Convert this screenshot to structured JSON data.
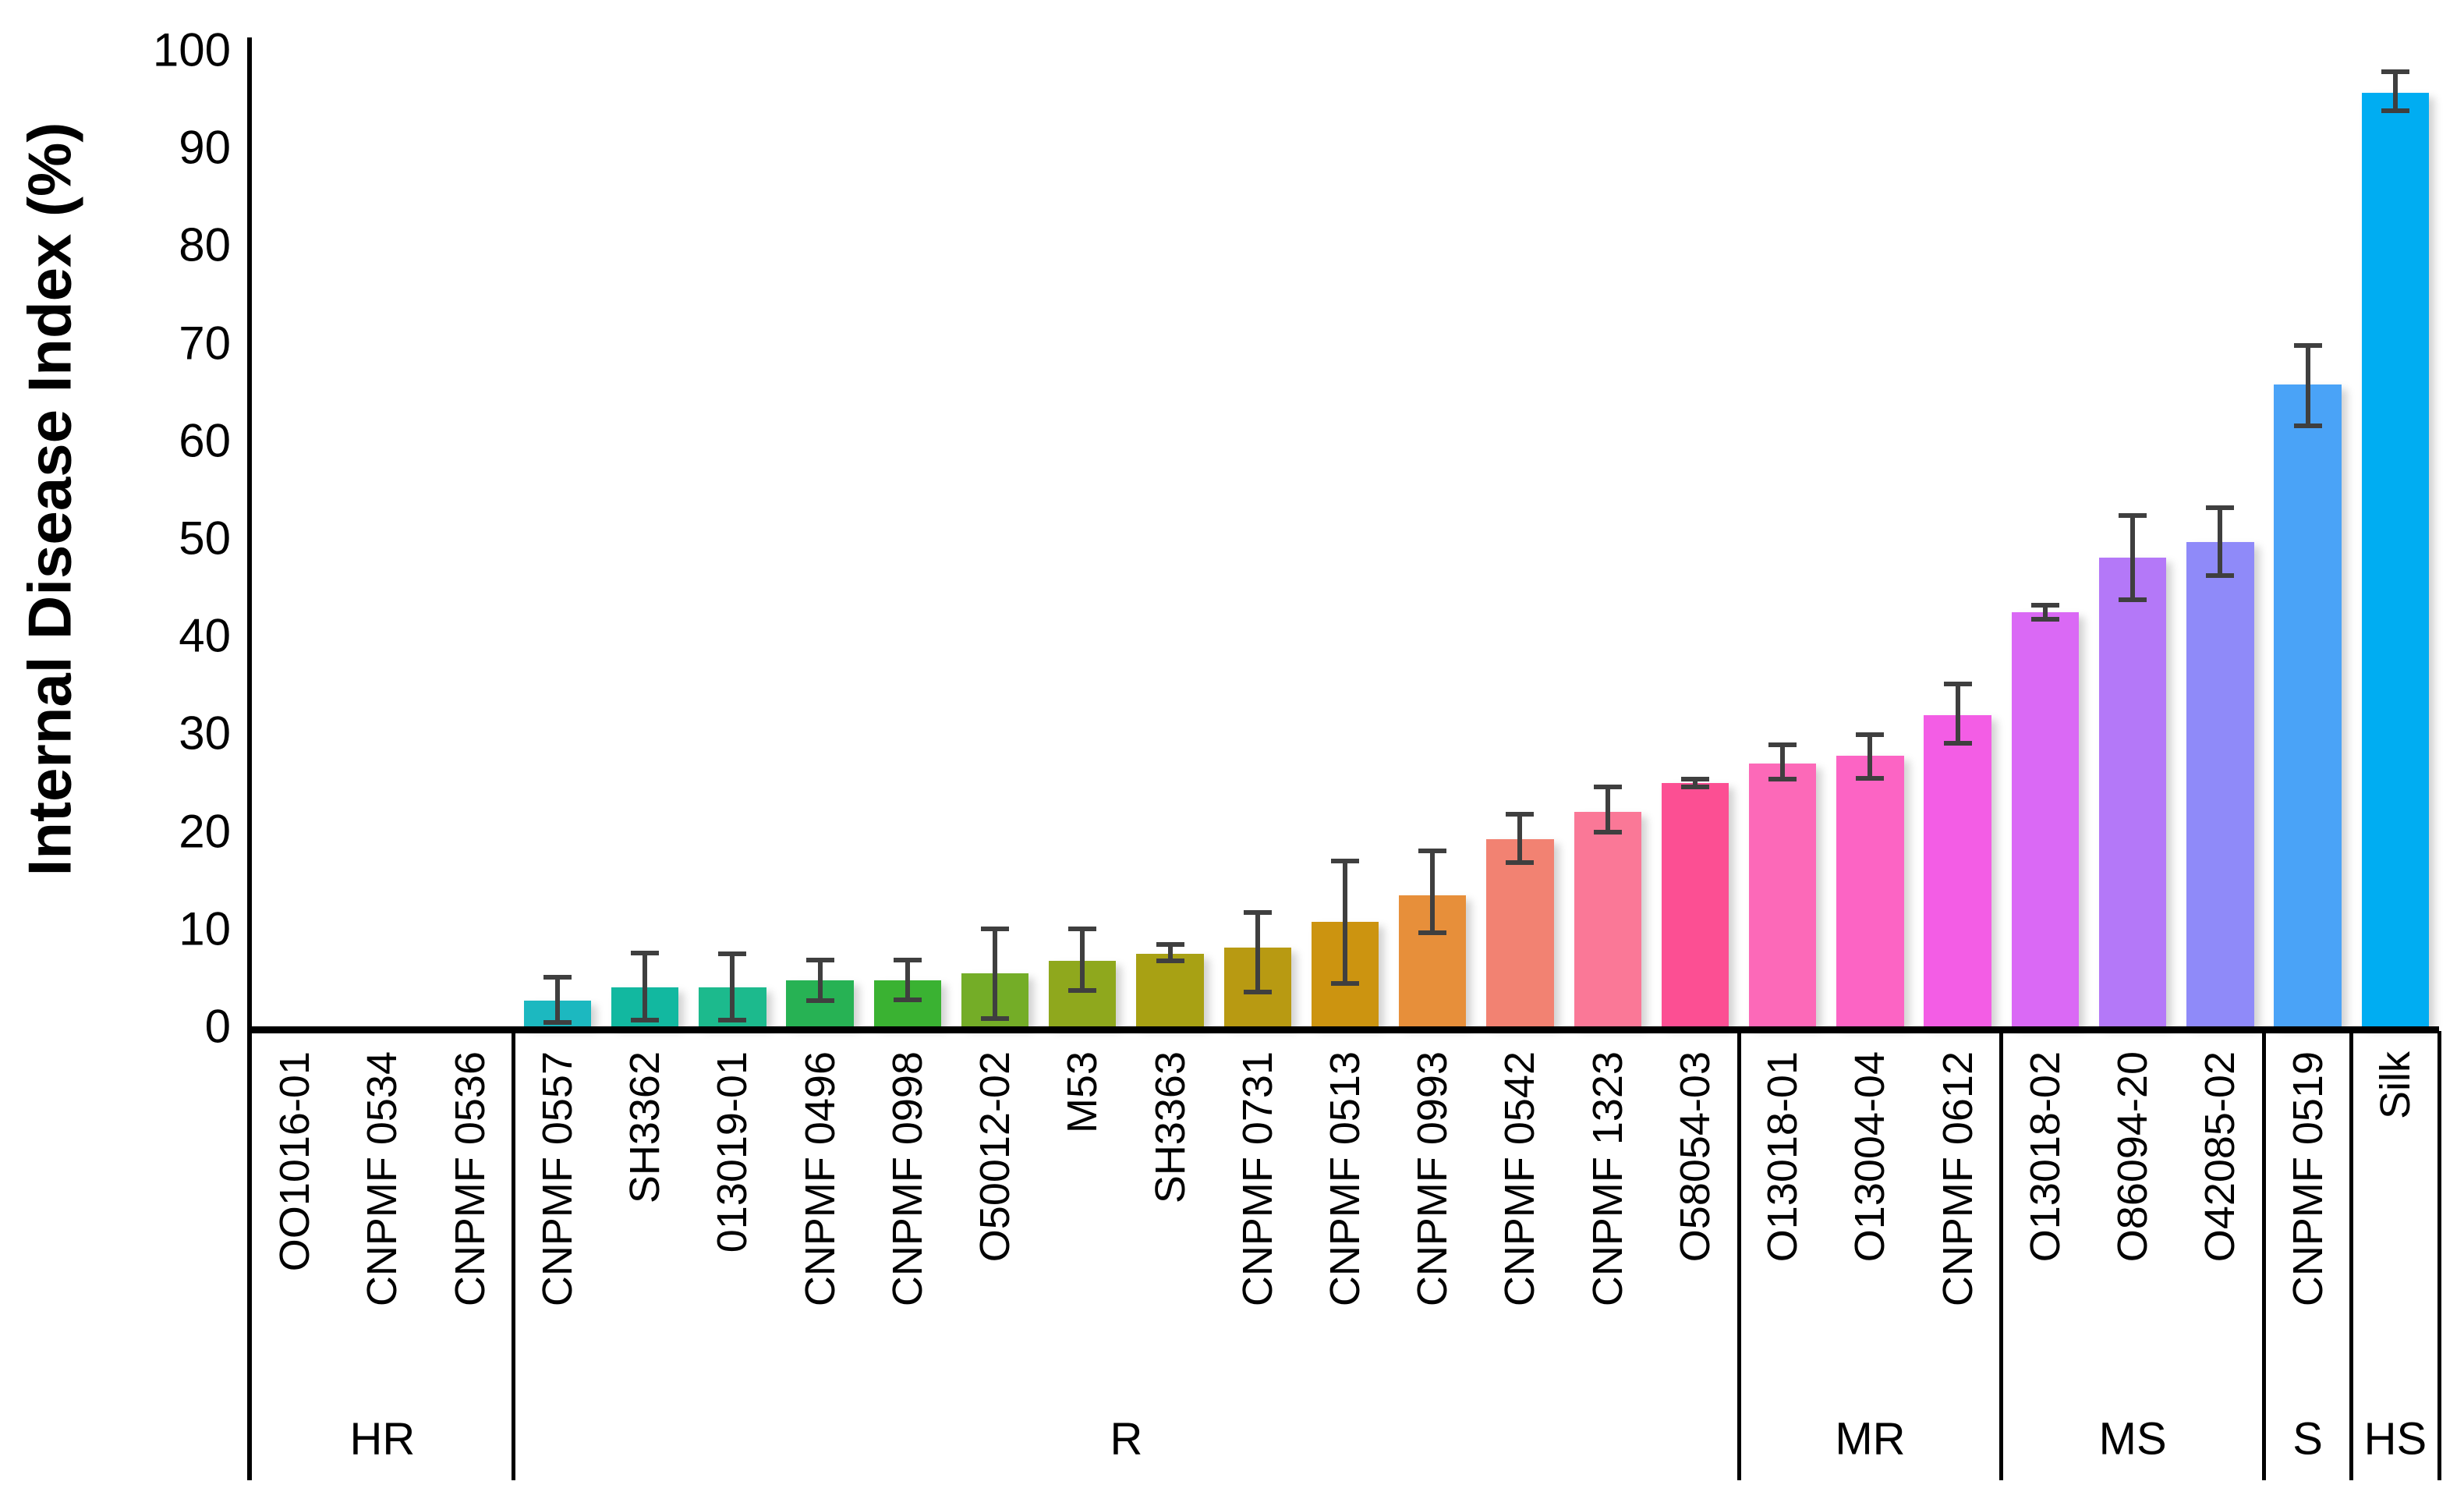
{
  "chart_data": {
    "type": "bar",
    "title": "",
    "xlabel": "",
    "ylabel": "Internal Disease Index (%)",
    "ylim": [
      0,
      100
    ],
    "ytick_step": 10,
    "grid": false,
    "legend": false,
    "error_bars": true,
    "error_color": "#3f3f3f",
    "axis_color": "#000000",
    "bars": [
      {
        "label": "OO1016-01",
        "group": "HR",
        "value": 0,
        "err_minus": 0,
        "err_plus": 0,
        "color": "#cccccc"
      },
      {
        "label": "CNPMF 0534",
        "group": "HR",
        "value": 0,
        "err_minus": 0,
        "err_plus": 0,
        "color": "#cccccc"
      },
      {
        "label": "CNPMF 0536",
        "group": "HR",
        "value": 0,
        "err_minus": 0,
        "err_plus": 0,
        "color": "#cccccc"
      },
      {
        "label": "CNPMF 0557",
        "group": "R",
        "value": 2.6,
        "err_minus": 2.2,
        "err_plus": 2.4,
        "color": "#1cb8c0"
      },
      {
        "label": "SH3362",
        "group": "R",
        "value": 4.0,
        "err_minus": 3.4,
        "err_plus": 3.5,
        "color": "#12b8a0"
      },
      {
        "label": "013019-01",
        "group": "R",
        "value": 4.0,
        "err_minus": 3.4,
        "err_plus": 3.4,
        "color": "#1cba8d"
      },
      {
        "label": "CNPMF 0496",
        "group": "R",
        "value": 4.7,
        "err_minus": 2.1,
        "err_plus": 2.1,
        "color": "#27b254"
      },
      {
        "label": "CNPMF 0998",
        "group": "R",
        "value": 4.7,
        "err_minus": 2.0,
        "err_plus": 2.1,
        "color": "#3ab232"
      },
      {
        "label": "O50012-02",
        "group": "R",
        "value": 5.4,
        "err_minus": 4.6,
        "err_plus": 4.6,
        "color": "#74ad27"
      },
      {
        "label": "M53",
        "group": "R",
        "value": 6.7,
        "err_minus": 3.0,
        "err_plus": 3.3,
        "color": "#8fa81d"
      },
      {
        "label": "SH3363",
        "group": "R",
        "value": 7.4,
        "err_minus": 0.7,
        "err_plus": 1.0,
        "color": "#a8a114"
      },
      {
        "label": "CNPMF 0731",
        "group": "R",
        "value": 8.1,
        "err_minus": 4.6,
        "err_plus": 3.6,
        "color": "#b89a12"
      },
      {
        "label": "CNPMF 0513",
        "group": "R",
        "value": 10.7,
        "err_minus": 6.3,
        "err_plus": 6.2,
        "color": "#cc9410"
      },
      {
        "label": "CNPMF 0993",
        "group": "R",
        "value": 13.4,
        "err_minus": 3.8,
        "err_plus": 4.6,
        "color": "#e78f3a"
      },
      {
        "label": "CNPMF 0542",
        "group": "R",
        "value": 19.2,
        "err_minus": 2.4,
        "err_plus": 2.5,
        "color": "#f28272"
      },
      {
        "label": "CNPMF 1323",
        "group": "R",
        "value": 22.0,
        "err_minus": 2.1,
        "err_plus": 2.5,
        "color": "#fa7897"
      },
      {
        "label": "O58054-03",
        "group": "R",
        "value": 24.9,
        "err_minus": 0.4,
        "err_plus": 0.4,
        "color": "#fc4f93"
      },
      {
        "label": "O13018-01",
        "group": "MR",
        "value": 26.9,
        "err_minus": 1.6,
        "err_plus": 1.9,
        "color": "#fc69b8"
      },
      {
        "label": "O13004-04",
        "group": "MR",
        "value": 27.7,
        "err_minus": 2.3,
        "err_plus": 2.2,
        "color": "#fc64c4"
      },
      {
        "label": "CNPMF 0612",
        "group": "MR",
        "value": 31.9,
        "err_minus": 2.9,
        "err_plus": 3.2,
        "color": "#f35de5"
      },
      {
        "label": "O13018-02",
        "group": "MS",
        "value": 42.4,
        "err_minus": 0.7,
        "err_plus": 0.7,
        "color": "#da69f5"
      },
      {
        "label": "O86094-20",
        "group": "MS",
        "value": 48.0,
        "err_minus": 4.3,
        "err_plus": 4.3,
        "color": "#b478f8"
      },
      {
        "label": "O42085-02",
        "group": "MS",
        "value": 49.6,
        "err_minus": 3.4,
        "err_plus": 3.5,
        "color": "#8f8af9"
      },
      {
        "label": "CNPMF 0519",
        "group": "S",
        "value": 65.7,
        "err_minus": 4.2,
        "err_plus": 4.0,
        "color": "#4aa3f7"
      },
      {
        "label": "Silk",
        "group": "HS",
        "value": 95.6,
        "err_minus": 1.8,
        "err_plus": 2.2,
        "color": "#00adf2"
      }
    ],
    "groups": [
      {
        "label": "HR",
        "count": 3
      },
      {
        "label": "R",
        "count": 14
      },
      {
        "label": "MR",
        "count": 3
      },
      {
        "label": "MS",
        "count": 3
      },
      {
        "label": "S",
        "count": 1
      },
      {
        "label": "HS",
        "count": 1
      }
    ]
  }
}
